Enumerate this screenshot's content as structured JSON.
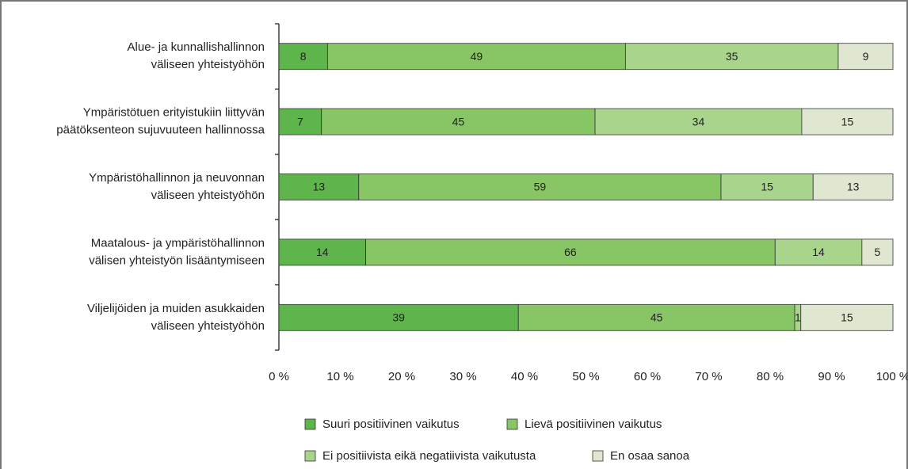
{
  "chart_data": {
    "type": "bar",
    "orientation": "horizontal",
    "stacking": "percent",
    "categories": [
      [
        "Alue- ja kunnallishallinnon",
        "väliseen yhteistyöhön"
      ],
      [
        "Ympäristötuen erityistukiin liittyvän",
        "päätöksenteon sujuvuuteen hallinnossa"
      ],
      [
        "Ympäristöhallinnon ja neuvonnan",
        "väliseen yhteistyöhön"
      ],
      [
        "Maatalous- ja ympäristöhallinnon",
        "välisen yhteistyön lisääntymiseen"
      ],
      [
        "Viljelijöiden ja muiden asukkaiden",
        "väliseen yhteistyöhön"
      ]
    ],
    "series": [
      {
        "name": "Suuri positiivinen vaikutus",
        "color": "#5db54b",
        "values": [
          8,
          7,
          13,
          14,
          39
        ]
      },
      {
        "name": "Lievä positiivinen vaikutus",
        "color": "#88c565",
        "values": [
          49,
          45,
          59,
          66,
          45
        ]
      },
      {
        "name": "Ei positiivista eikä negatiivista vaikutusta",
        "color": "#a8d48c",
        "values": [
          35,
          34,
          15,
          14,
          1
        ]
      },
      {
        "name": "En osaa sanoa",
        "color": "#dfe7d1",
        "values": [
          9,
          15,
          13,
          5,
          15
        ]
      }
    ],
    "xlim": [
      0,
      100
    ],
    "xticks": [
      {
        "value": 0,
        "label": "0 %"
      },
      {
        "value": 10,
        "label": "10 %"
      },
      {
        "value": 20,
        "label": "20 %"
      },
      {
        "value": 30,
        "label": "30 %"
      },
      {
        "value": 40,
        "label": "40 %"
      },
      {
        "value": 50,
        "label": "50 %"
      },
      {
        "value": 60,
        "label": "60 %"
      },
      {
        "value": 70,
        "label": "70 %"
      },
      {
        "value": 80,
        "label": "80 %"
      },
      {
        "value": 90,
        "label": "90 %"
      },
      {
        "value": 100,
        "label": "100 %"
      }
    ],
    "legend": "bottom"
  }
}
